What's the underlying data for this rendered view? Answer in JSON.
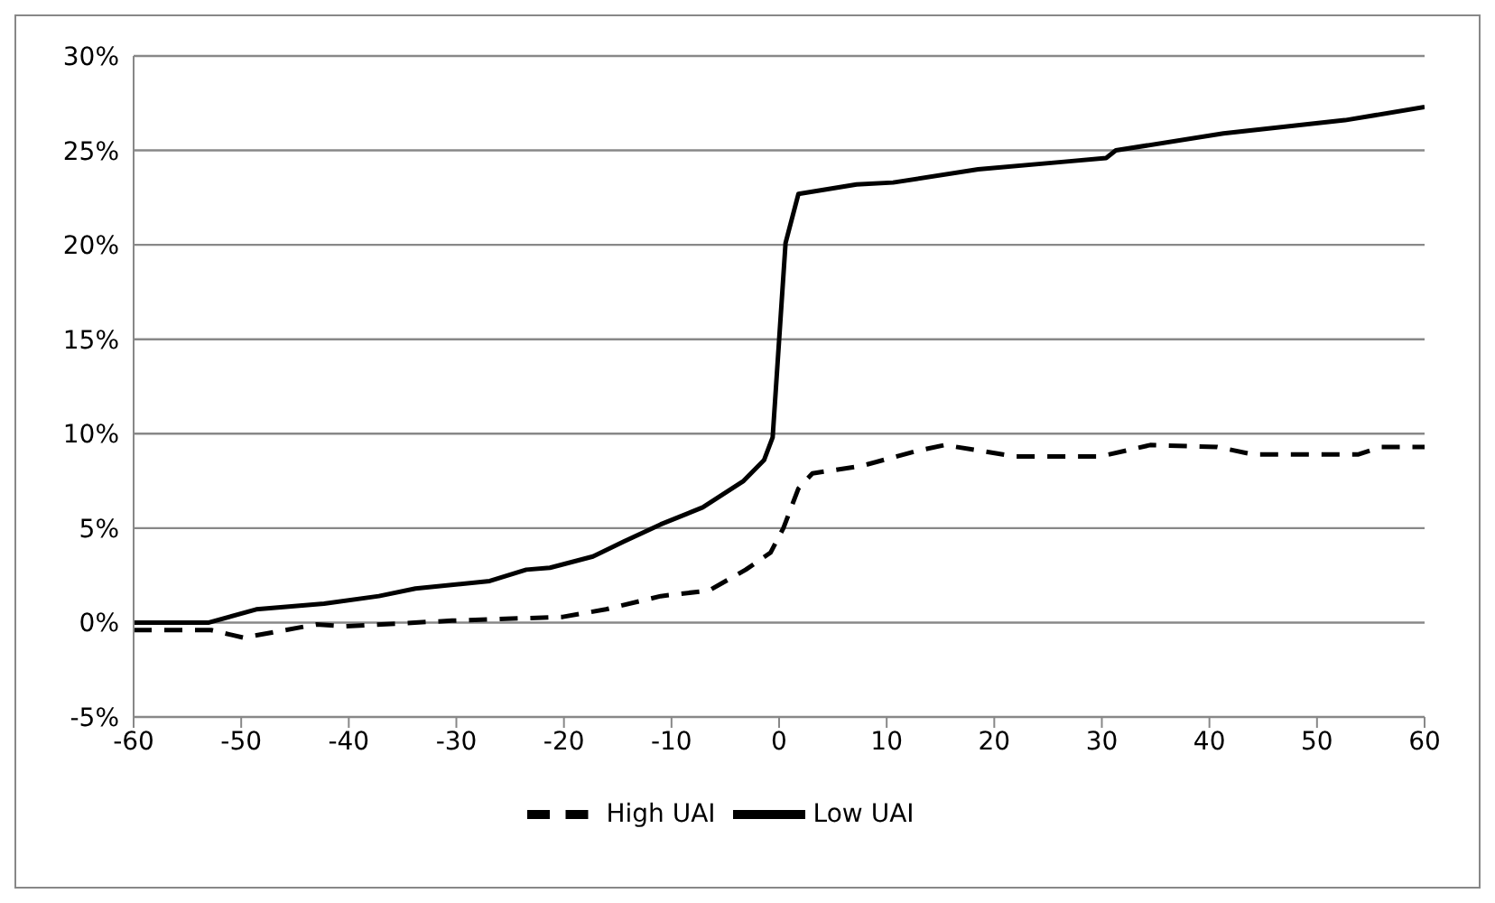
{
  "chart_data": {
    "type": "line",
    "xlim": [
      -60,
      60
    ],
    "xticks": [
      -60,
      -50,
      -40,
      -30,
      -20,
      -10,
      0,
      10,
      20,
      30,
      40,
      50,
      60
    ],
    "ylim": [
      -5,
      30
    ],
    "yticks": [
      {
        "value": -5,
        "label": "-5%"
      },
      {
        "value": 0,
        "label": "0%"
      },
      {
        "value": 5,
        "label": "5%"
      },
      {
        "value": 10,
        "label": "10%"
      },
      {
        "value": 15,
        "label": "15%"
      },
      {
        "value": 20,
        "label": "20%"
      },
      {
        "value": 25,
        "label": "25%"
      },
      {
        "value": 30,
        "label": "30%"
      }
    ],
    "grid": "y",
    "legend": "bottom",
    "marker": "none",
    "series": [
      {
        "name": "Low UAI",
        "color": "#000000",
        "line_style": "solid",
        "x": [
          -60,
          -53,
          -48.6,
          -42.3,
          -37.2,
          -33.8,
          -26.9,
          -23.5,
          -21.3,
          -17.3,
          -14.4,
          -11,
          -7.1,
          -3.3,
          -1.4,
          -0.6,
          0.6,
          1.8,
          7.2,
          10.6,
          18.5,
          26.5,
          30.4,
          31.3,
          41.3,
          52.6,
          60
        ],
        "values": [
          0,
          0,
          0.7,
          1,
          1.4,
          1.8,
          2.2,
          2.8,
          2.9,
          3.5,
          4.3,
          5.2,
          6.1,
          7.5,
          8.6,
          9.8,
          20.1,
          22.7,
          23.2,
          23.3,
          24,
          24.4,
          24.6,
          25,
          25.9,
          26.6,
          27.3
        ]
      },
      {
        "name": "High UAI",
        "color": "#000000",
        "line_style": "dashed",
        "x": [
          -60,
          -52.8,
          -49.8,
          -43,
          -40.5,
          -30.4,
          -20.1,
          -16.1,
          -11,
          -6.5,
          -3.1,
          -0.8,
          0.4,
          1.8,
          3.1,
          7.7,
          12.9,
          15.4,
          21.9,
          29.9,
          34.5,
          40.7,
          44.1,
          53.8,
          56,
          60
        ],
        "values": [
          -0.4,
          -0.4,
          -0.8,
          -0.1,
          -0.2,
          0.1,
          0.3,
          0.7,
          1.4,
          1.7,
          2.8,
          3.7,
          5,
          7.1,
          7.9,
          8.3,
          9.1,
          9.4,
          8.8,
          8.8,
          9.4,
          9.3,
          8.9,
          8.9,
          9.3,
          9.3
        ]
      }
    ]
  }
}
